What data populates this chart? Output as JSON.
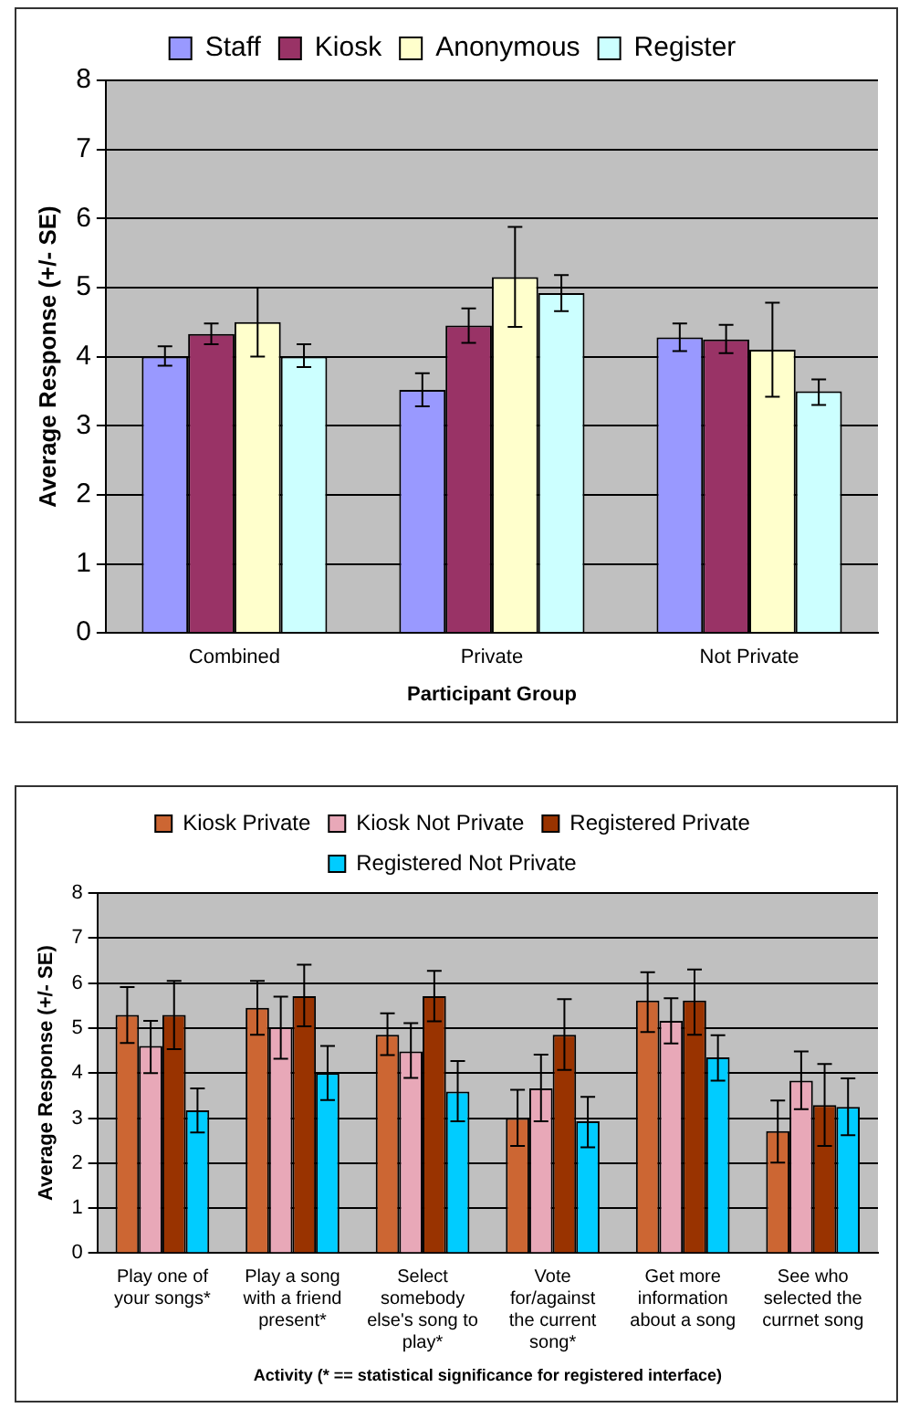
{
  "chart_data": [
    {
      "type": "bar",
      "categories": [
        "Combined",
        "Private",
        "Not Private"
      ],
      "xlabel": "Participant Group",
      "ylabel": "Average Response (+/- SE)",
      "ylim": [
        0,
        8
      ],
      "yticks": [
        0,
        1,
        2,
        3,
        4,
        5,
        6,
        7,
        8
      ],
      "grid": "y",
      "legend": "top",
      "series": [
        {
          "name": "Staff",
          "color": "#9999ff",
          "values": [
            4.0,
            3.52,
            4.28
          ],
          "errors": [
            [
              3.87,
              4.15
            ],
            [
              3.28,
              3.76
            ],
            [
              4.08,
              4.48
            ]
          ]
        },
        {
          "name": "Kiosk",
          "color": "#993366",
          "values": [
            4.33,
            4.45,
            4.25
          ],
          "errors": [
            [
              4.18,
              4.48
            ],
            [
              4.2,
              4.7
            ],
            [
              4.05,
              4.46
            ]
          ]
        },
        {
          "name": "Anonymous",
          "color": "#ffffcc",
          "values": [
            4.5,
            5.15,
            4.1
          ],
          "errors": [
            [
              4.0,
              5.0
            ],
            [
              4.43,
              5.88
            ],
            [
              3.42,
              4.78
            ]
          ]
        },
        {
          "name": "Register",
          "color": "#ccffff",
          "values": [
            4.0,
            4.92,
            3.5
          ],
          "errors": [
            [
              3.85,
              4.18
            ],
            [
              4.66,
              5.18
            ],
            [
              3.3,
              3.67
            ]
          ]
        }
      ]
    },
    {
      "type": "bar",
      "categories": [
        "Play one of your songs*",
        "Play a song with a friend present*",
        "Select somebody else's song to play*",
        "Vote for/against the current song*",
        "Get more information about a song",
        "See who selected the currnet song"
      ],
      "xlabel": "Activity (* == statistical significance for registered interface)",
      "ylabel": "Average Response (+/- SE)",
      "ylim": [
        0,
        8
      ],
      "yticks": [
        0,
        1,
        2,
        3,
        4,
        5,
        6,
        7,
        8
      ],
      "grid": "y",
      "legend": "top",
      "series": [
        {
          "name": "Kiosk Private",
          "color": "#cc6633",
          "values": [
            5.29,
            5.45,
            4.85,
            3.0,
            5.61,
            2.71
          ],
          "errors": [
            [
              4.67,
              5.91
            ],
            [
              4.85,
              6.05
            ],
            [
              4.4,
              5.33
            ],
            [
              2.38,
              3.63
            ],
            [
              4.91,
              6.24
            ],
            [
              2.01,
              3.39
            ]
          ]
        },
        {
          "name": "Kiosk Not Private",
          "color": "#e8a8b8",
          "values": [
            4.6,
            5.02,
            4.48,
            3.66,
            5.16,
            3.83
          ],
          "errors": [
            [
              4.0,
              5.16
            ],
            [
              4.32,
              5.7
            ],
            [
              3.89,
              5.11
            ],
            [
              2.93,
              4.41
            ],
            [
              4.66,
              5.66
            ],
            [
              3.2,
              4.48
            ]
          ]
        },
        {
          "name": "Registered Private",
          "color": "#993300",
          "values": [
            5.29,
            5.71,
            5.71,
            4.85,
            5.61,
            3.29
          ],
          "errors": [
            [
              4.53,
              6.05
            ],
            [
              5.04,
              6.41
            ],
            [
              5.15,
              6.27
            ],
            [
              4.07,
              5.64
            ],
            [
              4.85,
              6.3
            ],
            [
              2.38,
              4.2
            ]
          ]
        },
        {
          "name": "Registered Not Private",
          "color": "#00ccff",
          "values": [
            3.17,
            4.0,
            3.59,
            2.93,
            4.35,
            3.25
          ],
          "errors": [
            [
              2.68,
              3.66
            ],
            [
              3.4,
              4.6
            ],
            [
              2.93,
              4.27
            ],
            [
              2.35,
              3.47
            ],
            [
              3.83,
              4.84
            ],
            [
              2.62,
              3.88
            ]
          ]
        }
      ]
    }
  ]
}
